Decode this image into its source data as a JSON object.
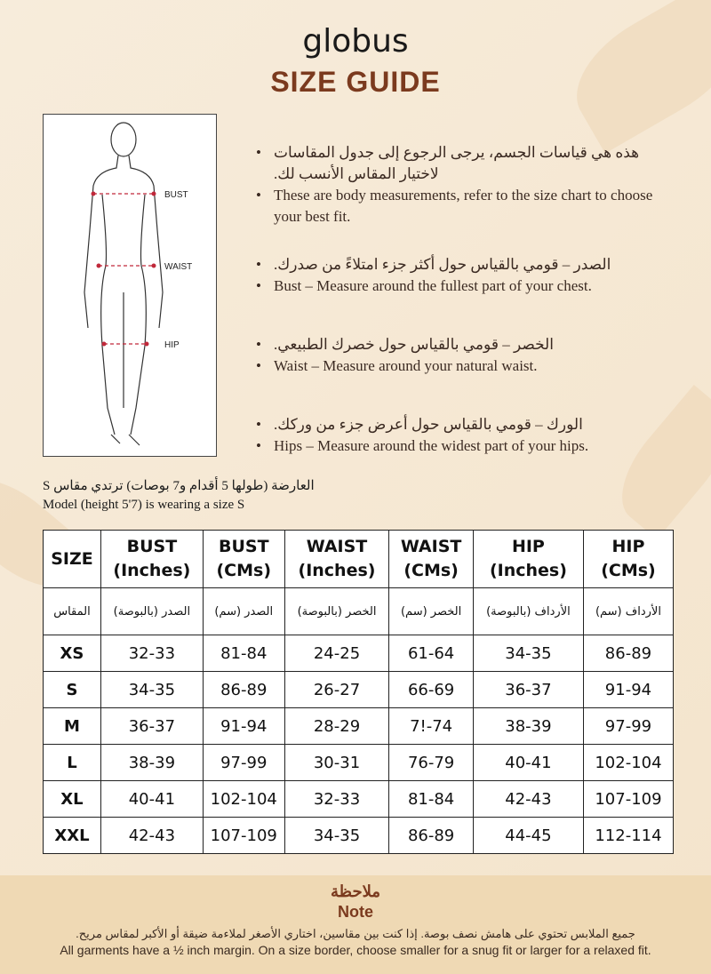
{
  "brand": "globus",
  "title": "SIZE GUIDE",
  "figure": {
    "labels": [
      "BUST",
      "WAIST",
      "HIP"
    ]
  },
  "bullets": [
    {
      "ar": "هذه هي قياسات الجسم، يرجى الرجوع إلى جدول المقاسات لاختيار المقاس الأنسب لك.",
      "en": "These are body measurements, refer to the size chart to choose your best fit."
    },
    {
      "ar": "الصدر – قومي بالقياس حول أكثر جزء امتلاءً من صدرك.",
      "en": "Bust – Measure around the fullest part of your chest."
    },
    {
      "ar": "الخصر – قومي بالقياس حول خصرك الطبيعي.",
      "en": "Waist – Measure around your natural waist."
    },
    {
      "ar": "الورك – قومي بالقياس حول أعرض جزء من وركك.",
      "en": "Hips – Measure around the widest part of your hips."
    }
  ],
  "model": {
    "ar": "العارضة (طولها 5 أقدام و7 بوصات) ترتدي مقاس S",
    "en": "Model (height 5'7) is wearing a size S"
  },
  "table": {
    "headers": [
      [
        "SIZE",
        ""
      ],
      [
        "BUST",
        "(Inches)"
      ],
      [
        "BUST",
        "(CMs)"
      ],
      [
        "WAIST",
        "(Inches)"
      ],
      [
        "WAIST",
        "(CMs)"
      ],
      [
        "HIP",
        "(Inches)"
      ],
      [
        "HIP",
        "(CMs)"
      ]
    ],
    "ar_headers": [
      "المقاس",
      "الصدر (بالبوصة)",
      "الصدر (سم)",
      "الخصر (بالبوصة)",
      "الخصر (سم)",
      "الأرداف (بالبوصة)",
      "الأرداف (سم)"
    ],
    "rows": [
      [
        "XS",
        "32-33",
        "81-84",
        "24-25",
        "61-64",
        "34-35",
        "86-89"
      ],
      [
        "S",
        "34-35",
        "86-89",
        "26-27",
        "66-69",
        "36-37",
        "91-94"
      ],
      [
        "M",
        "36-37",
        "91-94",
        "28-29",
        "7!-74",
        "38-39",
        "97-99"
      ],
      [
        "L",
        "38-39",
        "97-99",
        "30-31",
        "76-79",
        "40-41",
        "102-104"
      ],
      [
        "XL",
        "40-41",
        "102-104",
        "32-33",
        "81-84",
        "42-43",
        "107-109"
      ],
      [
        "XXL",
        "42-43",
        "107-109",
        "34-35",
        "86-89",
        "44-45",
        "112-114"
      ]
    ]
  },
  "note": {
    "title_ar": "ملاحظة",
    "title_en": "Note",
    "text_ar": "جميع الملابس تحتوي على هامش نصف بوصة. إذا كنت بين مقاسين، اختاري الأصغر لملاءمة ضيقة أو الأكبر لمقاس مريح.",
    "text_en": "All garments have a ½ inch margin. On a size border, choose smaller for a snug fit or larger for a relaxed fit."
  },
  "colors": {
    "accent": "#7b3a1e",
    "background": "#f5e8d3",
    "note_band": "#efd9b4",
    "measure_line": "#c0283a"
  }
}
